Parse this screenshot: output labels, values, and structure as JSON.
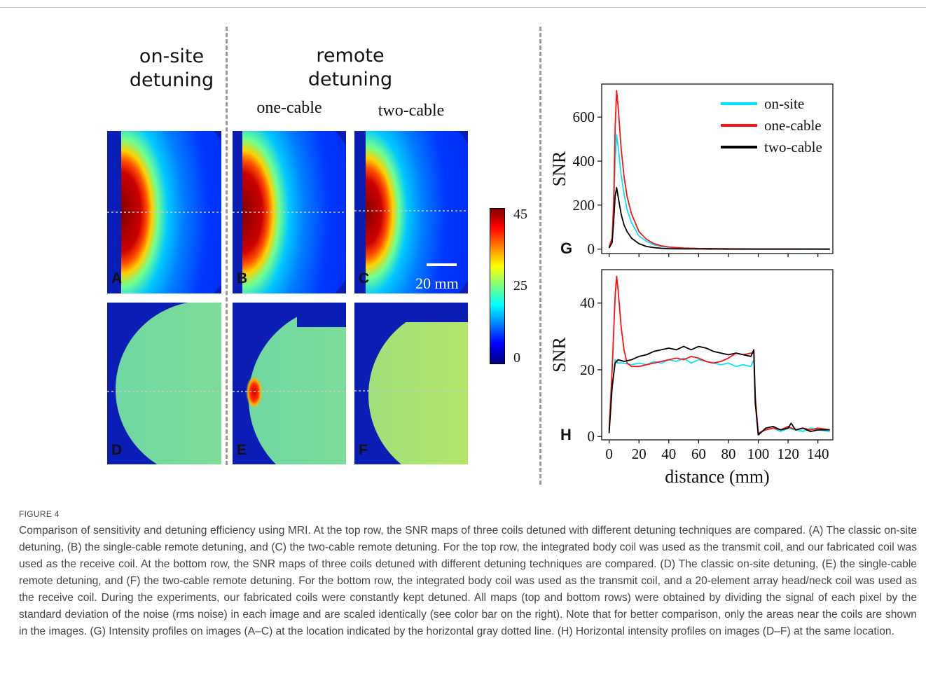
{
  "headers": {
    "onsite_line1": "on-site",
    "onsite_line2": "detuning",
    "remote_line1": "remote",
    "remote_line2": "detuning",
    "one_cable": "one-cable",
    "two_cable": "two-cable"
  },
  "panels": {
    "a": "A",
    "b": "B",
    "c": "C",
    "d": "D",
    "e": "E",
    "f": "F"
  },
  "scale_bar_label": "20 mm",
  "colorbar": {
    "ticks": [
      "45",
      "25",
      "0"
    ],
    "colors": [
      "#7f0000",
      "#ff0000",
      "#ffff00",
      "#00ffff",
      "#0000ff",
      "#00007f"
    ]
  },
  "chart_data": [
    {
      "type": "line",
      "panel_label": "G",
      "xlabel": "",
      "ylabel": "SNR",
      "xlim": [
        -5,
        150
      ],
      "ylim": [
        -20,
        750
      ],
      "yticks": [
        0,
        200,
        400,
        600
      ],
      "legend": "top-right",
      "series": [
        {
          "name": "on-site",
          "color": "#00e5ff",
          "x": [
            0,
            2,
            3,
            4,
            5,
            6,
            8,
            10,
            12,
            15,
            20,
            25,
            30,
            35,
            40,
            50,
            60,
            80,
            100,
            120,
            148
          ],
          "y": [
            10,
            40,
            150,
            400,
            520,
            470,
            340,
            250,
            180,
            120,
            60,
            35,
            20,
            12,
            8,
            4,
            2,
            1,
            1,
            1,
            0
          ]
        },
        {
          "name": "one-cable",
          "color": "#ff1010",
          "x": [
            0,
            2,
            3,
            4,
            5,
            6,
            8,
            10,
            12,
            15,
            20,
            25,
            30,
            35,
            40,
            50,
            60,
            80,
            100,
            120,
            148
          ],
          "y": [
            10,
            50,
            200,
            550,
            720,
            650,
            460,
            330,
            240,
            160,
            80,
            45,
            25,
            15,
            10,
            5,
            3,
            2,
            1,
            1,
            0
          ]
        },
        {
          "name": "two-cable",
          "color": "#000000",
          "x": [
            0,
            2,
            3,
            4,
            5,
            6,
            8,
            10,
            12,
            15,
            20,
            25,
            30,
            35,
            40,
            50,
            60,
            80,
            100,
            120,
            148
          ],
          "y": [
            5,
            30,
            120,
            240,
            280,
            240,
            160,
            110,
            80,
            50,
            25,
            12,
            7,
            4,
            2,
            1,
            1,
            0,
            0,
            0,
            0
          ]
        }
      ]
    },
    {
      "type": "line",
      "panel_label": "H",
      "xlabel": "distance (mm)",
      "ylabel": "SNR",
      "xlim": [
        -5,
        150
      ],
      "ylim": [
        -1,
        50
      ],
      "xticks": [
        0,
        20,
        40,
        60,
        80,
        100,
        120,
        140
      ],
      "yticks": [
        0,
        20,
        40
      ],
      "series": [
        {
          "name": "on-site",
          "color": "#00e5ff",
          "x": [
            0,
            2,
            4,
            6,
            10,
            15,
            20,
            25,
            30,
            35,
            40,
            45,
            50,
            55,
            60,
            65,
            70,
            75,
            80,
            85,
            90,
            95,
            97,
            98,
            100,
            105,
            110,
            115,
            120,
            125,
            130,
            135,
            140,
            148
          ],
          "y": [
            2,
            14,
            23,
            22,
            22,
            21.5,
            22,
            21.5,
            22.5,
            22,
            23,
            22.5,
            23.5,
            22,
            23,
            22.5,
            22,
            21.5,
            22,
            21,
            21.5,
            21,
            23,
            10,
            1,
            2,
            2.5,
            1.5,
            2.5,
            2,
            1.5,
            2.5,
            2,
            1.5
          ]
        },
        {
          "name": "one-cable",
          "color": "#ff1010",
          "x": [
            0,
            2,
            4,
            5,
            6,
            8,
            10,
            12,
            15,
            20,
            25,
            30,
            35,
            40,
            45,
            50,
            55,
            60,
            65,
            70,
            75,
            80,
            85,
            90,
            95,
            97,
            98,
            100,
            105,
            110,
            115,
            120,
            125,
            130,
            135,
            140,
            148
          ],
          "y": [
            2,
            20,
            42,
            48,
            44,
            33,
            26,
            22,
            21,
            21,
            21.5,
            22,
            22.5,
            23,
            23.5,
            23,
            24,
            23.5,
            22.5,
            22,
            22.5,
            23.5,
            25,
            24.5,
            25,
            25,
            12,
            1,
            2,
            2.5,
            2,
            3,
            2,
            2.5,
            2,
            2.5,
            2
          ]
        },
        {
          "name": "two-cable",
          "color": "#000000",
          "x": [
            0,
            2,
            4,
            6,
            10,
            15,
            20,
            25,
            30,
            35,
            40,
            45,
            50,
            55,
            60,
            65,
            70,
            75,
            80,
            85,
            90,
            95,
            97,
            98,
            100,
            105,
            110,
            115,
            120,
            122,
            125,
            130,
            135,
            140,
            148
          ],
          "y": [
            1,
            15,
            22,
            23,
            22.5,
            23,
            24,
            24.5,
            25.5,
            26,
            26.5,
            26,
            27,
            26,
            27,
            26.5,
            25.5,
            25,
            24.5,
            25,
            24.5,
            24,
            26,
            10,
            0.5,
            2.5,
            3,
            2,
            2.5,
            4,
            2,
            2.5,
            1.5,
            2,
            2
          ]
        }
      ]
    }
  ],
  "figure_title": "FIGURE 4",
  "caption": {
    "p1": "Comparison of sensitivity and detuning efficiency using MRI. At the top row, the SNR maps of three coils detuned with different detuning techniques are compared. (",
    "A": "A",
    "p2": ") The classic on-site detuning, (",
    "B": "B",
    "p3": ") the single-cable remote detuning, and (",
    "C": "C",
    "p4": ") the two-cable remote detuning. For the top row, the integrated body coil was used as the transmit coil, and our fabricated coil was used as the receive coil. At the bottom row, the SNR maps of three coils detuned with different detuning techniques are compared. (",
    "D": "D",
    "p5": ") The classic on-site detuning, (",
    "E": "E",
    "p6": ") the single-cable remote detuning, and (",
    "F": "F",
    "p7": ") the two-cable remote detuning. For the bottom row, the integrated body coil was used as the transmit coil, and a 20-element array head/neck coil was used as the receive coil. During the experiments, our fabricated coils were constantly kept detuned. All maps (top and bottom rows) were obtained by dividing the signal of each pixel by the standard deviation of the noise (rms noise) in each image and are scaled identically (see color bar on the right). Note that for better comparison, only the areas near the coils are shown in the images. (",
    "G": "G",
    "p8": ") Intensity profiles on images (",
    "AC": "A–C",
    "p9": ") at the location indicated by the horizontal gray dotted line. (",
    "H": "H",
    "p10": ") Horizontal intensity profiles on images (",
    "DF": "D–F",
    "p11": ") at the same location."
  }
}
